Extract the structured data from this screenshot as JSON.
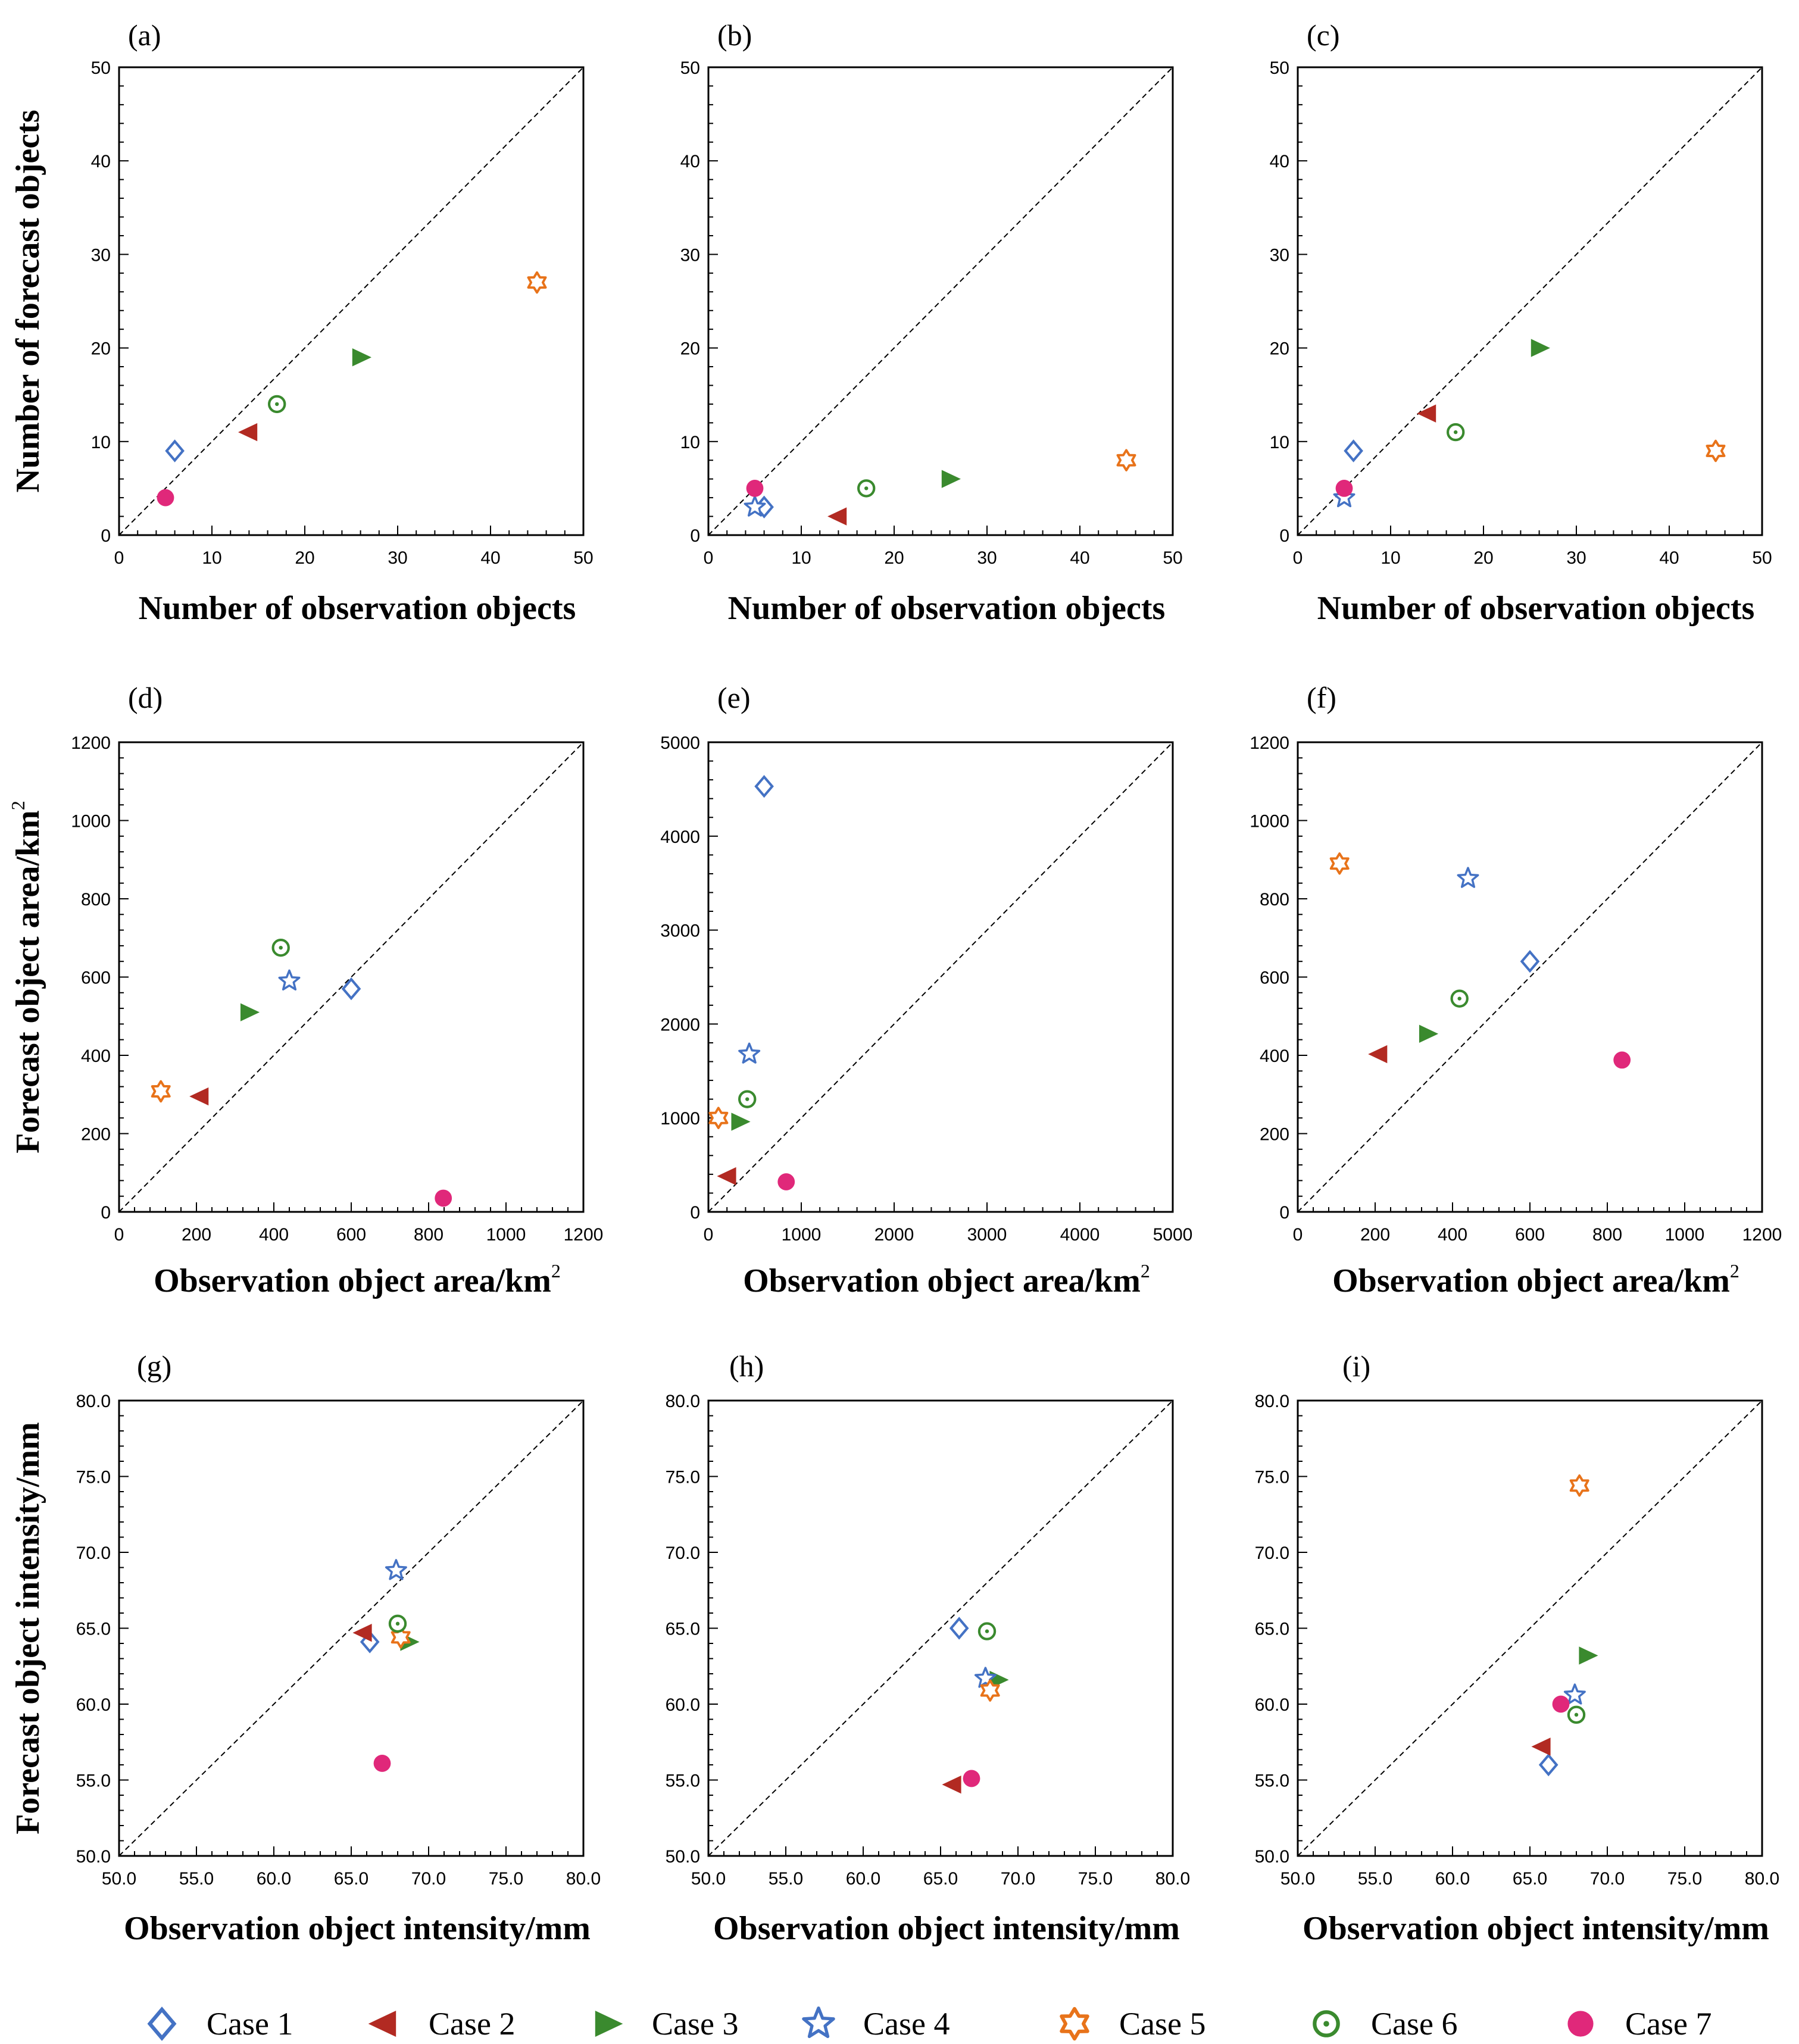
{
  "legend": [
    {
      "name": "Case 1",
      "marker": "diamond-icon",
      "color": "#4472C4"
    },
    {
      "name": "Case 2",
      "marker": "triangle-left-icon",
      "color": "#B22A22"
    },
    {
      "name": "Case 3",
      "marker": "triangle-right-icon",
      "color": "#3A8A2E"
    },
    {
      "name": "Case 4",
      "marker": "star-icon",
      "color": "#4472C4"
    },
    {
      "name": "Case 5",
      "marker": "hexagram-icon",
      "color": "#E8731A"
    },
    {
      "name": "Case 6",
      "marker": "circle-dot-icon",
      "color": "#3A8A2E"
    },
    {
      "name": "Case 7",
      "marker": "filled-circle-icon",
      "color": "#E0287A"
    }
  ],
  "chart_data": [
    {
      "type": "scatter",
      "panel": "(a)",
      "xlabel": "Number of observation objects",
      "ylabel": "Number of forecast objects",
      "xlim": [
        0,
        50
      ],
      "ylim": [
        0,
        50
      ],
      "xticks": [
        "0",
        "10",
        "20",
        "30",
        "40",
        "50"
      ],
      "yticks": [
        "0",
        "10",
        "20",
        "30",
        "40",
        "50"
      ],
      "diagonal": true,
      "points": [
        {
          "series": "Case 1",
          "x": 6,
          "y": 9
        },
        {
          "series": "Case 2",
          "x": 14,
          "y": 11
        },
        {
          "series": "Case 3",
          "x": 26,
          "y": 19
        },
        {
          "series": "Case 5",
          "x": 45,
          "y": 27
        },
        {
          "series": "Case 6",
          "x": 17,
          "y": 14
        },
        {
          "series": "Case 7",
          "x": 5,
          "y": 4
        }
      ]
    },
    {
      "type": "scatter",
      "panel": "(b)",
      "xlabel": "Number of observation objects",
      "ylabel": "",
      "xlim": [
        0,
        50
      ],
      "ylim": [
        0,
        50
      ],
      "xticks": [
        "0",
        "10",
        "20",
        "30",
        "40",
        "50"
      ],
      "yticks": [
        "0",
        "10",
        "20",
        "30",
        "40",
        "50"
      ],
      "diagonal": true,
      "points": [
        {
          "series": "Case 1",
          "x": 6,
          "y": 3
        },
        {
          "series": "Case 2",
          "x": 14,
          "y": 2
        },
        {
          "series": "Case 3",
          "x": 26,
          "y": 6
        },
        {
          "series": "Case 4",
          "x": 5,
          "y": 3
        },
        {
          "series": "Case 5",
          "x": 45,
          "y": 8
        },
        {
          "series": "Case 6",
          "x": 17,
          "y": 5
        },
        {
          "series": "Case 7",
          "x": 5,
          "y": 5
        }
      ]
    },
    {
      "type": "scatter",
      "panel": "(c)",
      "xlabel": "Number of observation objects",
      "ylabel": "",
      "xlim": [
        0,
        50
      ],
      "ylim": [
        0,
        50
      ],
      "xticks": [
        "0",
        "10",
        "20",
        "30",
        "40",
        "50"
      ],
      "yticks": [
        "0",
        "10",
        "20",
        "30",
        "40",
        "50"
      ],
      "diagonal": true,
      "points": [
        {
          "series": "Case 1",
          "x": 6,
          "y": 9
        },
        {
          "series": "Case 2",
          "x": 14,
          "y": 13
        },
        {
          "series": "Case 3",
          "x": 26,
          "y": 20
        },
        {
          "series": "Case 4",
          "x": 5,
          "y": 4
        },
        {
          "series": "Case 5",
          "x": 45,
          "y": 9
        },
        {
          "series": "Case 6",
          "x": 17,
          "y": 11
        },
        {
          "series": "Case 7",
          "x": 5,
          "y": 5
        }
      ]
    },
    {
      "type": "scatter",
      "panel": "(d)",
      "xlabel": "Observation object area/km",
      "xlabel_sup": "2",
      "ylabel": "Forecast object area/km",
      "ylabel_sup": "2",
      "xlim": [
        0,
        1200
      ],
      "ylim": [
        0,
        1200
      ],
      "xticks": [
        "0",
        "200",
        "400",
        "600",
        "800",
        "1000",
        "1200"
      ],
      "yticks": [
        "0",
        "200",
        "400",
        "600",
        "800",
        "1000",
        "1200"
      ],
      "diagonal": true,
      "points": [
        {
          "series": "Case 1",
          "x": 600,
          "y": 570
        },
        {
          "series": "Case 2",
          "x": 210,
          "y": 295
        },
        {
          "series": "Case 3",
          "x": 335,
          "y": 510
        },
        {
          "series": "Case 4",
          "x": 440,
          "y": 590
        },
        {
          "series": "Case 5",
          "x": 108,
          "y": 308
        },
        {
          "series": "Case 6",
          "x": 418,
          "y": 675
        },
        {
          "series": "Case 7",
          "x": 838,
          "y": 35
        }
      ]
    },
    {
      "type": "scatter",
      "panel": "(e)",
      "xlabel": "Observation object area/km",
      "xlabel_sup": "2",
      "ylabel": "",
      "xlim": [
        0,
        5000
      ],
      "ylim": [
        0,
        5000
      ],
      "xticks": [
        "0",
        "1000",
        "2000",
        "3000",
        "4000",
        "5000"
      ],
      "yticks": [
        "0",
        "1000",
        "2000",
        "3000",
        "4000",
        "5000"
      ],
      "diagonal": true,
      "points": [
        {
          "series": "Case 1",
          "x": 600,
          "y": 4530
        },
        {
          "series": "Case 2",
          "x": 210,
          "y": 380
        },
        {
          "series": "Case 3",
          "x": 335,
          "y": 960
        },
        {
          "series": "Case 4",
          "x": 440,
          "y": 1680
        },
        {
          "series": "Case 5",
          "x": 108,
          "y": 1000
        },
        {
          "series": "Case 6",
          "x": 418,
          "y": 1200
        },
        {
          "series": "Case 7",
          "x": 838,
          "y": 320
        }
      ]
    },
    {
      "type": "scatter",
      "panel": "(f)",
      "xlabel": "Observation object area/km",
      "xlabel_sup": "2",
      "ylabel": "",
      "xlim": [
        0,
        1200
      ],
      "ylim": [
        0,
        1200
      ],
      "xticks": [
        "0",
        "200",
        "400",
        "600",
        "800",
        "1000",
        "1200"
      ],
      "yticks": [
        "0",
        "200",
        "400",
        "600",
        "800",
        "1000",
        "1200"
      ],
      "diagonal": true,
      "points": [
        {
          "series": "Case 1",
          "x": 600,
          "y": 640
        },
        {
          "series": "Case 2",
          "x": 210,
          "y": 403
        },
        {
          "series": "Case 3",
          "x": 335,
          "y": 455
        },
        {
          "series": "Case 4",
          "x": 440,
          "y": 852
        },
        {
          "series": "Case 5",
          "x": 108,
          "y": 890
        },
        {
          "series": "Case 6",
          "x": 418,
          "y": 545
        },
        {
          "series": "Case 7",
          "x": 838,
          "y": 388
        }
      ]
    },
    {
      "type": "scatter",
      "panel": "(g)",
      "xlabel": "Observation object intensity/mm",
      "ylabel": "Forecast object intensity/mm",
      "xlim": [
        50,
        80
      ],
      "ylim": [
        50,
        80
      ],
      "xticks": [
        "50.0",
        "55.0",
        "60.0",
        "65.0",
        "70.0",
        "75.0",
        "80.0"
      ],
      "yticks": [
        "50.0",
        "55.0",
        "60.0",
        "65.0",
        "70.0",
        "75.0",
        "80.0"
      ],
      "diagonal": true,
      "points": [
        {
          "series": "Case 1",
          "x": 66.2,
          "y": 64.1
        },
        {
          "series": "Case 2",
          "x": 65.8,
          "y": 64.7
        },
        {
          "series": "Case 3",
          "x": 68.7,
          "y": 64.1
        },
        {
          "series": "Case 4",
          "x": 67.9,
          "y": 68.8
        },
        {
          "series": "Case 5",
          "x": 68.2,
          "y": 64.4
        },
        {
          "series": "Case 6",
          "x": 68.0,
          "y": 65.3
        },
        {
          "series": "Case 7",
          "x": 67.0,
          "y": 56.1
        }
      ]
    },
    {
      "type": "scatter",
      "panel": "(h)",
      "xlabel": "Observation object intensity/mm",
      "ylabel": "",
      "xlim": [
        50,
        80
      ],
      "ylim": [
        50,
        80
      ],
      "xticks": [
        "50.0",
        "55.0",
        "60.0",
        "65.0",
        "70.0",
        "75.0",
        "80.0"
      ],
      "yticks": [
        "50.0",
        "55.0",
        "60.0",
        "65.0",
        "70.0",
        "75.0",
        "80.0"
      ],
      "diagonal": true,
      "points": [
        {
          "series": "Case 1",
          "x": 66.2,
          "y": 65.0
        },
        {
          "series": "Case 2",
          "x": 65.8,
          "y": 54.7
        },
        {
          "series": "Case 3",
          "x": 68.7,
          "y": 61.6
        },
        {
          "series": "Case 4",
          "x": 67.9,
          "y": 61.7
        },
        {
          "series": "Case 5",
          "x": 68.2,
          "y": 60.9
        },
        {
          "series": "Case 6",
          "x": 68.0,
          "y": 64.8
        },
        {
          "series": "Case 7",
          "x": 67.0,
          "y": 55.1
        }
      ]
    },
    {
      "type": "scatter",
      "panel": "(i)",
      "xlabel": "Observation object intensity/mm",
      "ylabel": "",
      "xlim": [
        50,
        80
      ],
      "ylim": [
        50,
        80
      ],
      "xticks": [
        "50.0",
        "55.0",
        "60.0",
        "65.0",
        "70.0",
        "75.0",
        "80.0"
      ],
      "yticks": [
        "50.0",
        "55.0",
        "60.0",
        "65.0",
        "70.0",
        "75.0",
        "80.0"
      ],
      "diagonal": true,
      "points": [
        {
          "series": "Case 1",
          "x": 66.2,
          "y": 56.0
        },
        {
          "series": "Case 2",
          "x": 65.8,
          "y": 57.2
        },
        {
          "series": "Case 3",
          "x": 68.7,
          "y": 63.2
        },
        {
          "series": "Case 4",
          "x": 67.9,
          "y": 60.6
        },
        {
          "series": "Case 5",
          "x": 68.2,
          "y": 74.4
        },
        {
          "series": "Case 6",
          "x": 68.0,
          "y": 59.3
        },
        {
          "series": "Case 7",
          "x": 67.0,
          "y": 60.0
        }
      ]
    }
  ]
}
